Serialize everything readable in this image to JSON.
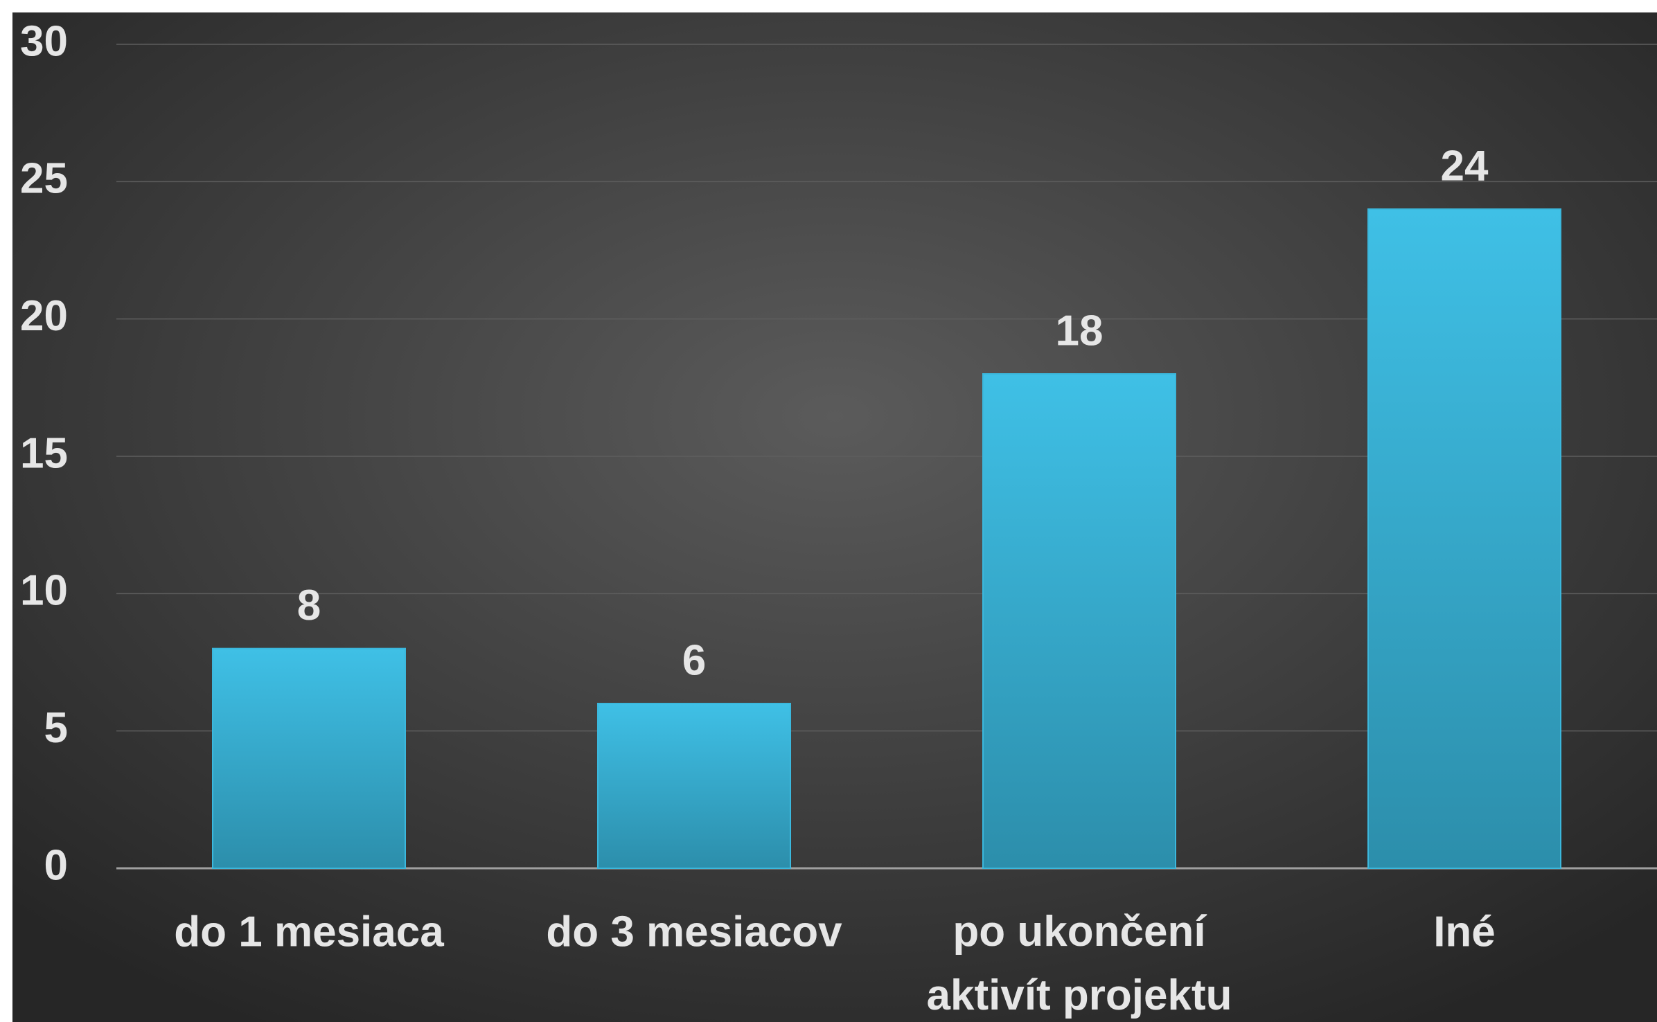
{
  "chart_data": {
    "type": "bar",
    "categories": [
      "do 1 mesiaca",
      "do 3 mesiacov",
      "po ukončení\naktivít projektu",
      "Iné"
    ],
    "values": [
      8,
      6,
      18,
      24
    ],
    "color": "#3bb8dd",
    "ylim": [
      0,
      30
    ],
    "yticks": [
      0,
      5,
      10,
      15,
      20,
      25,
      30
    ],
    "grid": true
  }
}
